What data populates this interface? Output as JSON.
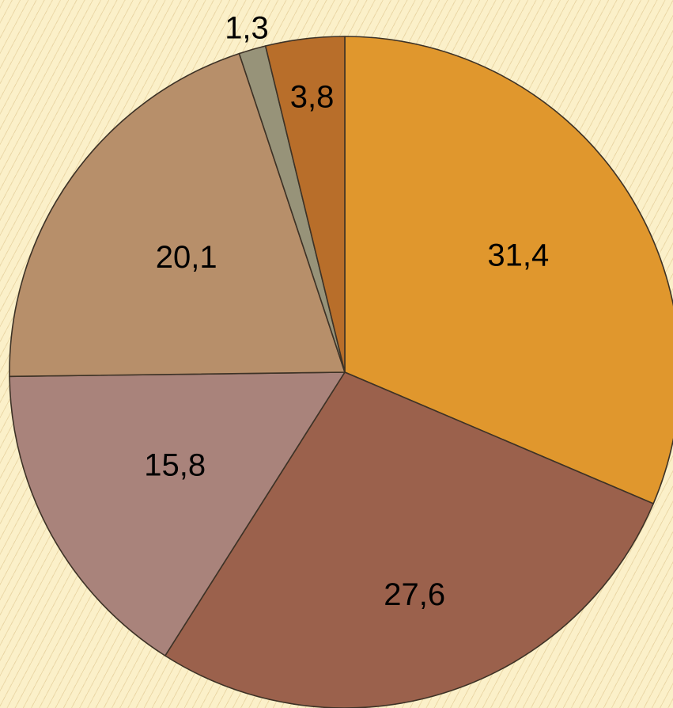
{
  "chart_data": {
    "type": "pie",
    "title": "",
    "start_angle_deg": 0,
    "direction": "clockwise",
    "slices": [
      {
        "label": "31,4",
        "value": 31.4,
        "color": "#e0972d"
      },
      {
        "label": "27,6",
        "value": 27.6,
        "color": "#9b614c"
      },
      {
        "label": "15,8",
        "value": 15.8,
        "color": "#a9837b"
      },
      {
        "label": "20,1",
        "value": 20.1,
        "color": "#b78f6a"
      },
      {
        "label": "1,3",
        "value": 1.3,
        "color": "#979379"
      },
      {
        "label": "3,8",
        "value": 3.8,
        "color": "#b86e2a"
      }
    ]
  }
}
